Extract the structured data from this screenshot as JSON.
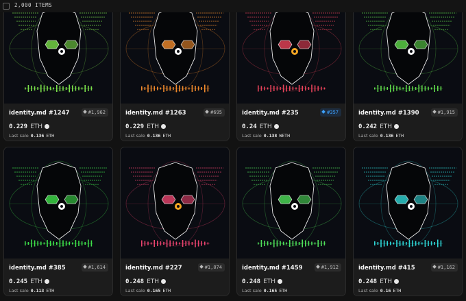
{
  "header": {
    "count_label": "2,000 ITEMS"
  },
  "items": [
    {
      "name": "identity.md #1247",
      "rank": "#1,962",
      "price": "0.229",
      "currency": "ETH",
      "last_sale_label": "Last sale",
      "last_sale": "0.136",
      "last_sale_currency": "ETH",
      "color": "#7be04a",
      "eye": "#ffffff",
      "highlight": false
    },
    {
      "name": "identity.md #1263",
      "rank": "#695",
      "price": "0.229",
      "currency": "ETH",
      "last_sale_label": "Last sale",
      "last_sale": "0.136",
      "last_sale_currency": "ETH",
      "color": "#f08a2c",
      "eye": "#ffffff",
      "highlight": false
    },
    {
      "name": "identity.md #235",
      "rank": "#357",
      "price": "0.24",
      "currency": "ETH",
      "last_sale_label": "Last sale",
      "last_sale": "0.138",
      "last_sale_currency": "WETH",
      "color": "#e8435a",
      "eye": "#f5a623",
      "highlight": true
    },
    {
      "name": "identity.md #1390",
      "rank": "#1,915",
      "price": "0.242",
      "currency": "ETH",
      "last_sale_label": "Last sale",
      "last_sale": "0.136",
      "last_sale_currency": "ETH",
      "color": "#5fd84a",
      "eye": "#ffffff",
      "highlight": false
    },
    {
      "name": "identity.md #385",
      "rank": "#1,614",
      "price": "0.245",
      "currency": "ETH",
      "last_sale_label": "Last sale",
      "last_sale": "0.113",
      "last_sale_currency": "ETH",
      "color": "#3ee04a",
      "eye": "#ffffff",
      "highlight": false
    },
    {
      "name": "identity.md #227",
      "rank": "#1,074",
      "price": "0.248",
      "currency": "ETH",
      "last_sale_label": "Last sale",
      "last_sale": "0.165",
      "last_sale_currency": "ETH",
      "color": "#e8436e",
      "eye": "#f5a623",
      "highlight": false
    },
    {
      "name": "identity.md #1459",
      "rank": "#1,912",
      "price": "0.248",
      "currency": "ETH",
      "last_sale_label": "Last sale",
      "last_sale": "0.165",
      "last_sale_currency": "ETH",
      "color": "#4fe05a",
      "eye": "#ffffff",
      "highlight": false
    },
    {
      "name": "identity.md #415",
      "rank": "#1,162",
      "price": "0.248",
      "currency": "ETH",
      "last_sale_label": "Last sale",
      "last_sale": "0.16",
      "last_sale_currency": "ETH",
      "color": "#2ed6d6",
      "eye": "#ffffff",
      "highlight": false
    }
  ]
}
